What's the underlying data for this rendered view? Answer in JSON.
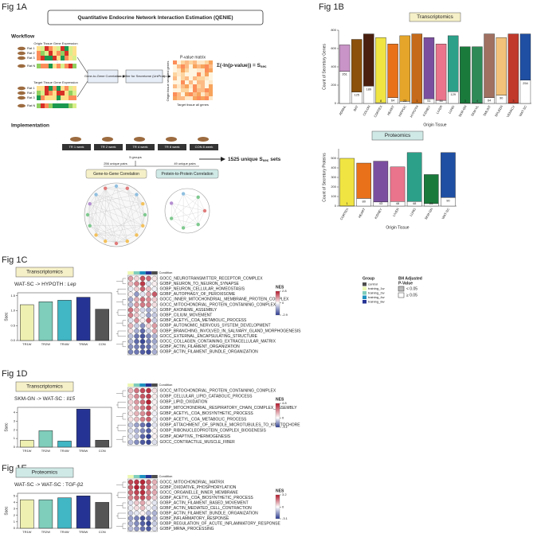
{
  "figure": {
    "label_a": "Fig 1A",
    "label_b": "Fig 1B",
    "label_c": "Fig 1C",
    "label_d": "Fig 1D",
    "label_e": "Fig 1E",
    "qenie_title": "Quantitative Endocrine Network Interaction Estimation (QENIE)",
    "workflow": "Workflow",
    "origin_expr": "Origin Tissue Gene Expression",
    "target_expr": "Target Tissue Gene Expression",
    "rats": [
      "Rat 1",
      "Rat 2",
      "Rat 3",
      "Rat N"
    ],
    "g2g": "Gene-to-Gene Correlation",
    "filter": "Filter for Secretome (UniProt)",
    "pmatrix": "P-value matrix",
    "formula": "Σ(-ln(p-value)) = S",
    "formula_sub": "sec",
    "target_all": "Target tissue all genes",
    "origin_secreted": "Origin tissue secreted genes",
    "implementation": "Implementation",
    "groups": [
      "TR 1 week",
      "TR 2 week",
      "TR 4 week",
      "TR 8 week",
      "CON 8 week"
    ],
    "n_groups": "5 groups",
    "pairs_g": "256 unique pairs",
    "pairs_p": "49 unique pairs",
    "sets": "1525 unique S",
    "sets_sub": "sec",
    "sets_end": "sets",
    "g2g_corr": "Gene-to-Gene Correlation",
    "p2p_corr": "Protein-to-Protein Correlation",
    "group_legend": {
      "title": "Group",
      "items": [
        {
          "name": "control",
          "color": "#4d4d4d"
        },
        {
          "name": "training_1w",
          "color": "#edf8b1"
        },
        {
          "name": "training_2w",
          "color": "#7fcdbb"
        },
        {
          "name": "training_4w",
          "color": "#1d91c0"
        },
        {
          "name": "training_8w",
          "color": "#253494"
        }
      ]
    },
    "bh_legend": {
      "title": [
        "BH Adjusted",
        "P-Value"
      ],
      "items": [
        {
          "name": "< 0.05",
          "color": "#bbbbbb"
        },
        {
          "name": "≥ 0.05",
          "color": "#ffffff"
        }
      ]
    }
  },
  "chart_data": [
    {
      "type": "stacked_bar",
      "title": "Transcriptomics",
      "title_fill": "#f6f0c8",
      "ylabel": "Count of Secretory Genes",
      "xlabel": "Origin Tissue",
      "categories": [
        "ADRNL",
        "BAT",
        "COLON",
        "CORTEX",
        "HEART",
        "HIPPOC",
        "HYPOTH",
        "KIDNEY",
        "LIVER",
        "LUNG",
        "SKM-GN",
        "SKM-VL",
        "SMLINT",
        "SPLEEN",
        "VENACV",
        "WAT-SC"
      ],
      "series": [
        {
          "color": "#ffffff",
          "values": [
            351,
            125,
            189,
            8,
            64,
            23,
            1,
            51,
            34,
            129,
            3,
            4,
            64,
            90,
            3,
            254
          ]
        },
        {
          "colors": [
            "#c994c7",
            "#8c510a",
            "#4a1f0f",
            "#f0e442",
            "#e8711a",
            "#e5a52a",
            "#c46a1a",
            "#7b4fa0",
            "#e9748b",
            "#2ca089",
            "#1a7a3c",
            "#2e8b57",
            "#a07060",
            "#f2c27a",
            "#c0392b",
            "#1f4fa3"
          ],
          "values": [
            289,
            575,
            571,
            712,
            586,
            717,
            759,
            669,
            616,
            611,
            617,
            616,
            696,
            630,
            757,
            506
          ]
        }
      ],
      "ylim": [
        0,
        800
      ],
      "yticks": [
        0,
        200,
        400,
        600,
        800
      ]
    },
    {
      "type": "stacked_bar",
      "title": "Proteomics",
      "title_fill": "#cfe9e6",
      "ylabel": "Count of Secretory Proteins",
      "xlabel": "Origin Tissue",
      "categories": [
        "CORTEX",
        "HEART",
        "KIDNEY",
        "LIVER",
        "LUNG",
        "SKM-GN",
        "WAT-SC"
      ],
      "series": [
        {
          "color": "#ffffff",
          "values": [
            1,
            80,
            43,
            48,
            48,
            26,
            90
          ]
        },
        {
          "colors": [
            "#f0e442",
            "#e8711a",
            "#7b4fa0",
            "#e9748b",
            "#2ca089",
            "#1a7a3c",
            "#1f4fa3"
          ],
          "values": [
            499,
            370,
            427,
            362,
            512,
            304,
            470
          ]
        }
      ],
      "ylim": [
        0,
        600
      ],
      "yticks": [
        0,
        100,
        200,
        300,
        400,
        500
      ]
    },
    {
      "type": "bar",
      "title": "Transcriptomics",
      "title_fill": "#f6f0c8",
      "subtitle": "WAT-SC -> HYPOTH : ",
      "gene": "Lep",
      "ylabel": "Ssec",
      "categories": [
        "TR1W",
        "TR2W",
        "TR4W",
        "TR8W",
        "CON"
      ],
      "values": [
        1.2,
        1.3,
        1.35,
        1.45,
        1.05
      ],
      "colors": [
        "#edf0b0",
        "#7fcdbb",
        "#41b6c4",
        "#253494",
        "#555555"
      ],
      "ylim": [
        0,
        1.6
      ],
      "yticks": [
        {
          "value": 0,
          "label": "0.0"
        },
        {
          "value": 0.5,
          "label": "0.5"
        },
        {
          "value": 1,
          "label": "1.0"
        },
        {
          "value": 1.5,
          "label": "1.5"
        }
      ]
    },
    {
      "type": "dotplot",
      "header": "Condition",
      "legend_title": "NES",
      "colors": [
        "#2b3a8f",
        "#ffffff",
        "#b2182b"
      ],
      "zlim": [
        -2.9,
        2.8
      ],
      "zticks": [
        2.8,
        0,
        -2.9
      ],
      "categories": [
        "GOCC_NEUROTRANSMITTER_RECEPTOR_COMPLEX",
        "GOBP_NEURON_TO_NEURON_SYNAPSE",
        "GOBP_NEURON_CELLULAR_HOMEOSTASIS",
        "GOBP_AUTOPHAGY_OF_PEROXISOME",
        "GOCC_INNER_MITOCHONDRIAL_MEMBRANE_PROTEIN_COMPLEX",
        "GOCC_MITOCHONDRIAL_PROTEIN_CONTAINING_COMPLEX",
        "GOBP_AXONEME_ASSEMBLY",
        "GOBP_CILIUM_MOVEMENT",
        "GOBP_ACETYL_COA_METABOLIC_PROCESS",
        "GOBP_AUTONOMIC_NERVOUS_SYSTEM_DEVELOPMENT",
        "GOBP_BRANCHING_INVOLVED_IN_SALIVARY_GLAND_MORPHOGENESIS",
        "GOCC_EXTERNAL_ENCAPSULATING_STRUCTURE",
        "GOCC_COLLAGEN_CONTAINING_EXTRACELLULAR_MATRIX",
        "GOBP_ACTIN_FILAMENT_ORGANIZATION",
        "GOBP_ACTIN_FILAMENT_BUNDLE_ORGANIZATION"
      ],
      "values": [
        [
          1.2,
          0.5,
          2.1,
          1.8,
          0.3
        ],
        [
          0.8,
          1.5,
          2.4,
          -0.5,
          0.2
        ],
        [
          -0.3,
          0.6,
          1.9,
          0.8,
          -0.2
        ],
        [
          0.2,
          -1.5,
          -0.4,
          1.1,
          2.0
        ],
        [
          -1.2,
          1.0,
          1.8,
          1.4,
          0.6
        ],
        [
          -1.0,
          1.2,
          1.6,
          1.5,
          0.4
        ],
        [
          1.7,
          0.9,
          -0.6,
          -1.2,
          -0.5
        ],
        [
          1.5,
          0.7,
          -0.3,
          -1.4,
          -0.8
        ],
        [
          -0.4,
          1.3,
          0.2,
          1.9,
          -0.7
        ],
        [
          0.9,
          -0.8,
          -1.6,
          0.5,
          1.2
        ],
        [
          0.4,
          -1.2,
          -2.2,
          -0.6,
          1.0
        ],
        [
          -0.9,
          -2.0,
          -2.5,
          -1.8,
          -1.1
        ],
        [
          -1.1,
          -2.2,
          -2.7,
          -1.9,
          -1.3
        ],
        [
          -1.6,
          -1.9,
          -2.3,
          -2.1,
          -0.9
        ],
        [
          -1.8,
          -2.0,
          -2.4,
          -2.6,
          -1.2
        ]
      ]
    },
    {
      "type": "bar",
      "title": "Transcriptomics",
      "title_fill": "#f6f0c8",
      "subtitle": "SKM-GN -> WAT-SC : ",
      "gene": "Il15",
      "ylabel": "Ssec",
      "categories": [
        "TR1W",
        "TR2W",
        "TR4W",
        "TR8W",
        "CON"
      ],
      "values": [
        0.8,
        1.9,
        0.7,
        4.4,
        0.8
      ],
      "colors": [
        "#edf0b0",
        "#7fcdbb",
        "#41b6c4",
        "#253494",
        "#555555"
      ],
      "ylim": [
        0,
        4.6
      ],
      "yticks": [
        0,
        1,
        2,
        3,
        4
      ]
    },
    {
      "type": "dotplot",
      "header": "Condition",
      "legend_title": "NES",
      "colors": [
        "#2b3a8f",
        "#ffffff",
        "#b2182b"
      ],
      "zlim": [
        -3.1,
        4.8
      ],
      "zticks": [
        4.8,
        0,
        -3.1
      ],
      "categories": [
        "GOCC_MITOCHONDRIAL_PROTEIN_CONTAINING_COMPLEX",
        "GOBP_CELLULAR_LIPID_CATABOLIC_PROCESS",
        "GOBP_LIPID_OXIDATION",
        "GOBP_MITOCHONDRIAL_RESPIRATORY_CHAIN_COMPLEX_ASSEMBLY",
        "GOBP_ACETYL_COA_BIOSYNTHETIC_PROCESS",
        "GOBP_ACETYL_COA_METABOLIC_PROCESS",
        "GOBP_ATTACHMENT_OF_SPINDLE_MICROTUBULES_TO_KINETOCHORE",
        "GOBP_RIBONUCLEOPROTEIN_COMPLEX_BIOGENESIS",
        "GOBP_ADAPTIVE_THERMOGENESIS",
        "GOCC_CONTRACTILE_MUSCLE_FIBER"
      ],
      "values": [
        [
          1.5,
          2.9,
          3.8,
          4.2,
          0.6
        ],
        [
          1.2,
          2.5,
          3.5,
          4.0,
          0.4
        ],
        [
          1.0,
          2.2,
          3.1,
          4.6,
          0.3
        ],
        [
          0.8,
          1.9,
          2.8,
          3.9,
          0.5
        ],
        [
          0.5,
          1.6,
          2.4,
          3.6,
          -0.2
        ],
        [
          0.6,
          1.4,
          2.6,
          3.3,
          -0.3
        ],
        [
          -0.8,
          -1.5,
          -2.2,
          -2.8,
          -0.4
        ],
        [
          -0.6,
          -1.2,
          -1.9,
          -2.5,
          0.2
        ],
        [
          -0.4,
          -1.0,
          -2.4,
          -3.0,
          0.3
        ],
        [
          -1.0,
          -1.8,
          -2.6,
          -2.9,
          -0.5
        ]
      ]
    },
    {
      "type": "bar",
      "title": "Proteomics",
      "title_fill": "#cfe9e6",
      "subtitle": "WAT-SC -> WAT-SC : TGF-β2",
      "ylabel": "Ssec",
      "categories": [
        "TR1W",
        "TR2W",
        "TR4W",
        "TR8W",
        "CON"
      ],
      "values": [
        4.4,
        4.4,
        4.7,
        5.0,
        4.0
      ],
      "colors": [
        "#edf0b0",
        "#7fcdbb",
        "#41b6c4",
        "#253494",
        "#555555"
      ],
      "ylim": [
        0,
        5.4
      ],
      "yticks": [
        0,
        1,
        2,
        3,
        4,
        5
      ]
    },
    {
      "type": "dotplot",
      "header": "Condition",
      "legend_title": "NES",
      "colors": [
        "#2b3a8f",
        "#ffffff",
        "#b2182b"
      ],
      "zlim": [
        -3.1,
        3.2
      ],
      "zticks": [
        3.2,
        0,
        -3.1
      ],
      "categories": [
        "GOCC_MITOCHONDRIAL_MATRIX",
        "GOBP_OXIDATIVE_PHOSPHORYLATION",
        "GOCC_ORGANELLE_INNER_MEMBRANE",
        "GOBP_ACETYL_COA_BIOSYNTHETIC_PROCESS",
        "GOBP_ACTIN_FILAMENT_BASED_MOVEMENT",
        "GOBP_ACTIN_MEDIATED_CELL_CONTRACTION",
        "GOBP_ACTIN_FILAMENT_BUNDLE_ORGANIZATION",
        "GOBP_INFLAMMATORY_RESPONSE",
        "GOBP_REGULATION_OF_ACUTE_INFLAMMATORY_RESPONSE",
        "GOBP_MRNA_PROCESSING"
      ],
      "values": [
        [
          2.5,
          2.8,
          3.0,
          2.2,
          1.1
        ],
        [
          2.2,
          3.1,
          2.7,
          2.0,
          0.9
        ],
        [
          2.0,
          2.6,
          2.9,
          1.8,
          1.2
        ],
        [
          1.6,
          2.2,
          2.5,
          1.9,
          0.7
        ],
        [
          -0.5,
          0.8,
          1.2,
          0.3,
          -0.4
        ],
        [
          -0.3,
          0.5,
          0.9,
          -0.2,
          -0.6
        ],
        [
          -0.8,
          -0.4,
          0.2,
          -1.0,
          -1.2
        ],
        [
          -1.5,
          -2.0,
          -2.8,
          -2.2,
          -1.0
        ],
        [
          -1.2,
          -1.8,
          -2.5,
          -2.9,
          -0.8
        ],
        [
          -1.0,
          -1.6,
          -2.2,
          -2.6,
          -0.5
        ]
      ]
    }
  ]
}
